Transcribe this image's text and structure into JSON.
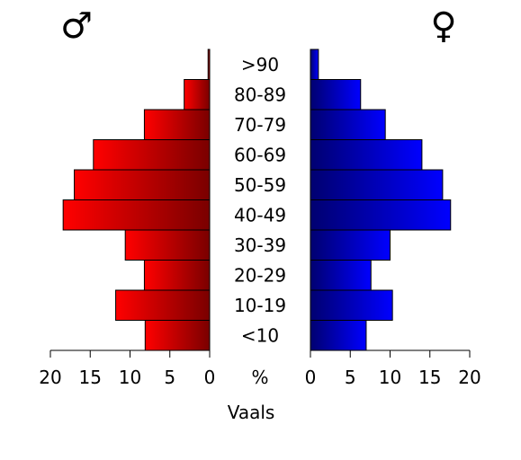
{
  "chart_data": {
    "type": "bar",
    "title": "Vaals",
    "categories": [
      ">90",
      "80-89",
      "70-79",
      "60-69",
      "50-59",
      "40-49",
      "30-39",
      "20-29",
      "10-19",
      "<10"
    ],
    "series": [
      {
        "name": "♂",
        "values": [
          0.2,
          3.2,
          8.2,
          14.6,
          17.0,
          18.4,
          10.6,
          8.2,
          11.8,
          8.1
        ],
        "color": "#ff0000"
      },
      {
        "name": "♀",
        "values": [
          1.0,
          6.3,
          9.4,
          14.0,
          16.6,
          17.6,
          10.0,
          7.6,
          10.3,
          7.0
        ],
        "color": "#0000ff"
      }
    ],
    "xlim": [
      0,
      20
    ],
    "xticks": [
      "20",
      "15",
      "10",
      "5",
      "0"
    ],
    "xticks_right": [
      "0",
      "5",
      "10",
      "15",
      "20"
    ],
    "unit_label": "%",
    "male_symbol": "♂",
    "female_symbol": "♀"
  }
}
